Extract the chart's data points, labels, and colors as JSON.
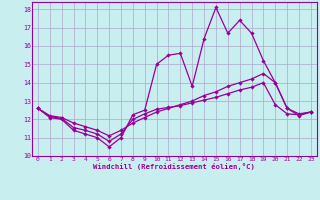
{
  "xlabel": "Windchill (Refroidissement éolien,°C)",
  "background_color": "#c8eef0",
  "line_color": "#990099",
  "grid_color": "#aaaacc",
  "xlim": [
    -0.5,
    23.5
  ],
  "ylim": [
    10,
    18.4
  ],
  "yticks": [
    10,
    11,
    12,
    13,
    14,
    15,
    16,
    17,
    18
  ],
  "xticks": [
    0,
    1,
    2,
    3,
    4,
    5,
    6,
    7,
    8,
    9,
    10,
    11,
    12,
    13,
    14,
    15,
    16,
    17,
    18,
    19,
    20,
    21,
    22,
    23
  ],
  "line1_x": [
    0,
    1,
    2,
    3,
    4,
    5,
    6,
    7,
    8,
    9,
    10,
    11,
    12,
    13,
    14,
    15,
    16,
    17,
    18,
    19,
    20,
    21,
    22,
    23
  ],
  "line1_y": [
    12.6,
    12.1,
    12.0,
    11.4,
    11.2,
    11.0,
    10.5,
    11.0,
    12.25,
    12.5,
    15.0,
    15.5,
    15.6,
    13.8,
    16.4,
    18.1,
    16.7,
    17.4,
    16.7,
    15.2,
    14.0,
    12.6,
    12.2,
    12.4
  ],
  "line2_x": [
    0,
    1,
    2,
    3,
    4,
    5,
    6,
    7,
    8,
    9,
    10,
    11,
    12,
    13,
    14,
    15,
    16,
    17,
    18,
    19,
    20,
    21,
    22,
    23
  ],
  "line2_y": [
    12.6,
    12.2,
    12.1,
    11.8,
    11.6,
    11.4,
    11.1,
    11.4,
    11.8,
    12.1,
    12.4,
    12.6,
    12.8,
    13.0,
    13.3,
    13.5,
    13.8,
    14.0,
    14.2,
    14.5,
    14.0,
    12.6,
    12.3,
    12.4
  ],
  "line3_x": [
    0,
    1,
    2,
    3,
    4,
    5,
    6,
    7,
    8,
    9,
    10,
    11,
    12,
    13,
    14,
    15,
    16,
    17,
    18,
    19,
    20,
    21,
    22,
    23
  ],
  "line3_y": [
    12.6,
    12.15,
    12.05,
    11.55,
    11.4,
    11.2,
    10.8,
    11.2,
    12.0,
    12.3,
    12.55,
    12.65,
    12.75,
    12.9,
    13.05,
    13.2,
    13.4,
    13.6,
    13.75,
    14.0,
    12.8,
    12.3,
    12.25,
    12.4
  ]
}
